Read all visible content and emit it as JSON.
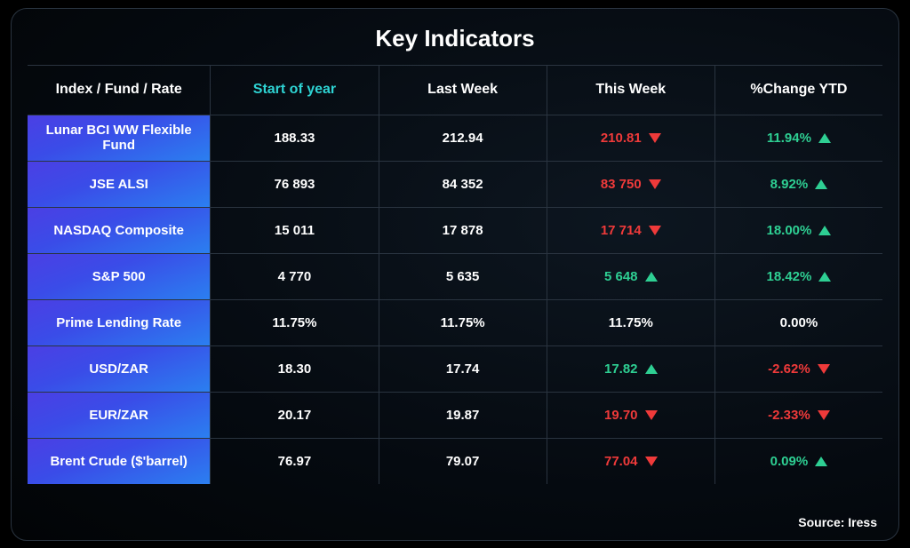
{
  "title": "Key Indicators",
  "source_label": "Source: Iress",
  "columns": {
    "name": "Index / Fund / Rate",
    "start": "Start of year",
    "last": "Last Week",
    "this": "This Week",
    "ytd": "%Change YTD"
  },
  "colors": {
    "background": "#050a10",
    "border": "#2a3440",
    "text_white": "#ffffff",
    "accent_teal": "#2ed3d3",
    "up": "#2ecf93",
    "down": "#ef3a3a",
    "name_gradient_from": "#4b3fe4",
    "name_gradient_to": "#2b7ff0"
  },
  "table": {
    "type": "table",
    "rows": [
      {
        "name": "Lunar BCI WW Flexible Fund",
        "start": "188.33",
        "last": "212.94",
        "this": {
          "value": "210.81",
          "dir": "down"
        },
        "ytd": {
          "value": "11.94%",
          "dir": "up"
        }
      },
      {
        "name": "JSE ALSI",
        "start": "76 893",
        "last": "84 352",
        "this": {
          "value": "83 750",
          "dir": "down"
        },
        "ytd": {
          "value": "8.92%",
          "dir": "up"
        }
      },
      {
        "name": "NASDAQ Composite",
        "start": "15 011",
        "last": "17 878",
        "this": {
          "value": "17 714",
          "dir": "down"
        },
        "ytd": {
          "value": "18.00%",
          "dir": "up"
        }
      },
      {
        "name": "S&P 500",
        "start": "4 770",
        "last": "5 635",
        "this": {
          "value": "5 648",
          "dir": "up"
        },
        "ytd": {
          "value": "18.42%",
          "dir": "up"
        }
      },
      {
        "name": "Prime Lending Rate",
        "start": "11.75%",
        "last": "11.75%",
        "this": {
          "value": "11.75%",
          "dir": "flat"
        },
        "ytd": {
          "value": "0.00%",
          "dir": "flat"
        }
      },
      {
        "name": "USD/ZAR",
        "start": "18.30",
        "last": "17.74",
        "this": {
          "value": "17.82",
          "dir": "up"
        },
        "ytd": {
          "value": "-2.62%",
          "dir": "down"
        }
      },
      {
        "name": "EUR/ZAR",
        "start": "20.17",
        "last": "19.87",
        "this": {
          "value": "19.70",
          "dir": "down"
        },
        "ytd": {
          "value": "-2.33%",
          "dir": "down"
        }
      },
      {
        "name": "Brent Crude ($'barrel)",
        "start": "76.97",
        "last": "79.07",
        "this": {
          "value": "77.04",
          "dir": "down"
        },
        "ytd": {
          "value": "0.09%",
          "dir": "up"
        }
      }
    ]
  }
}
